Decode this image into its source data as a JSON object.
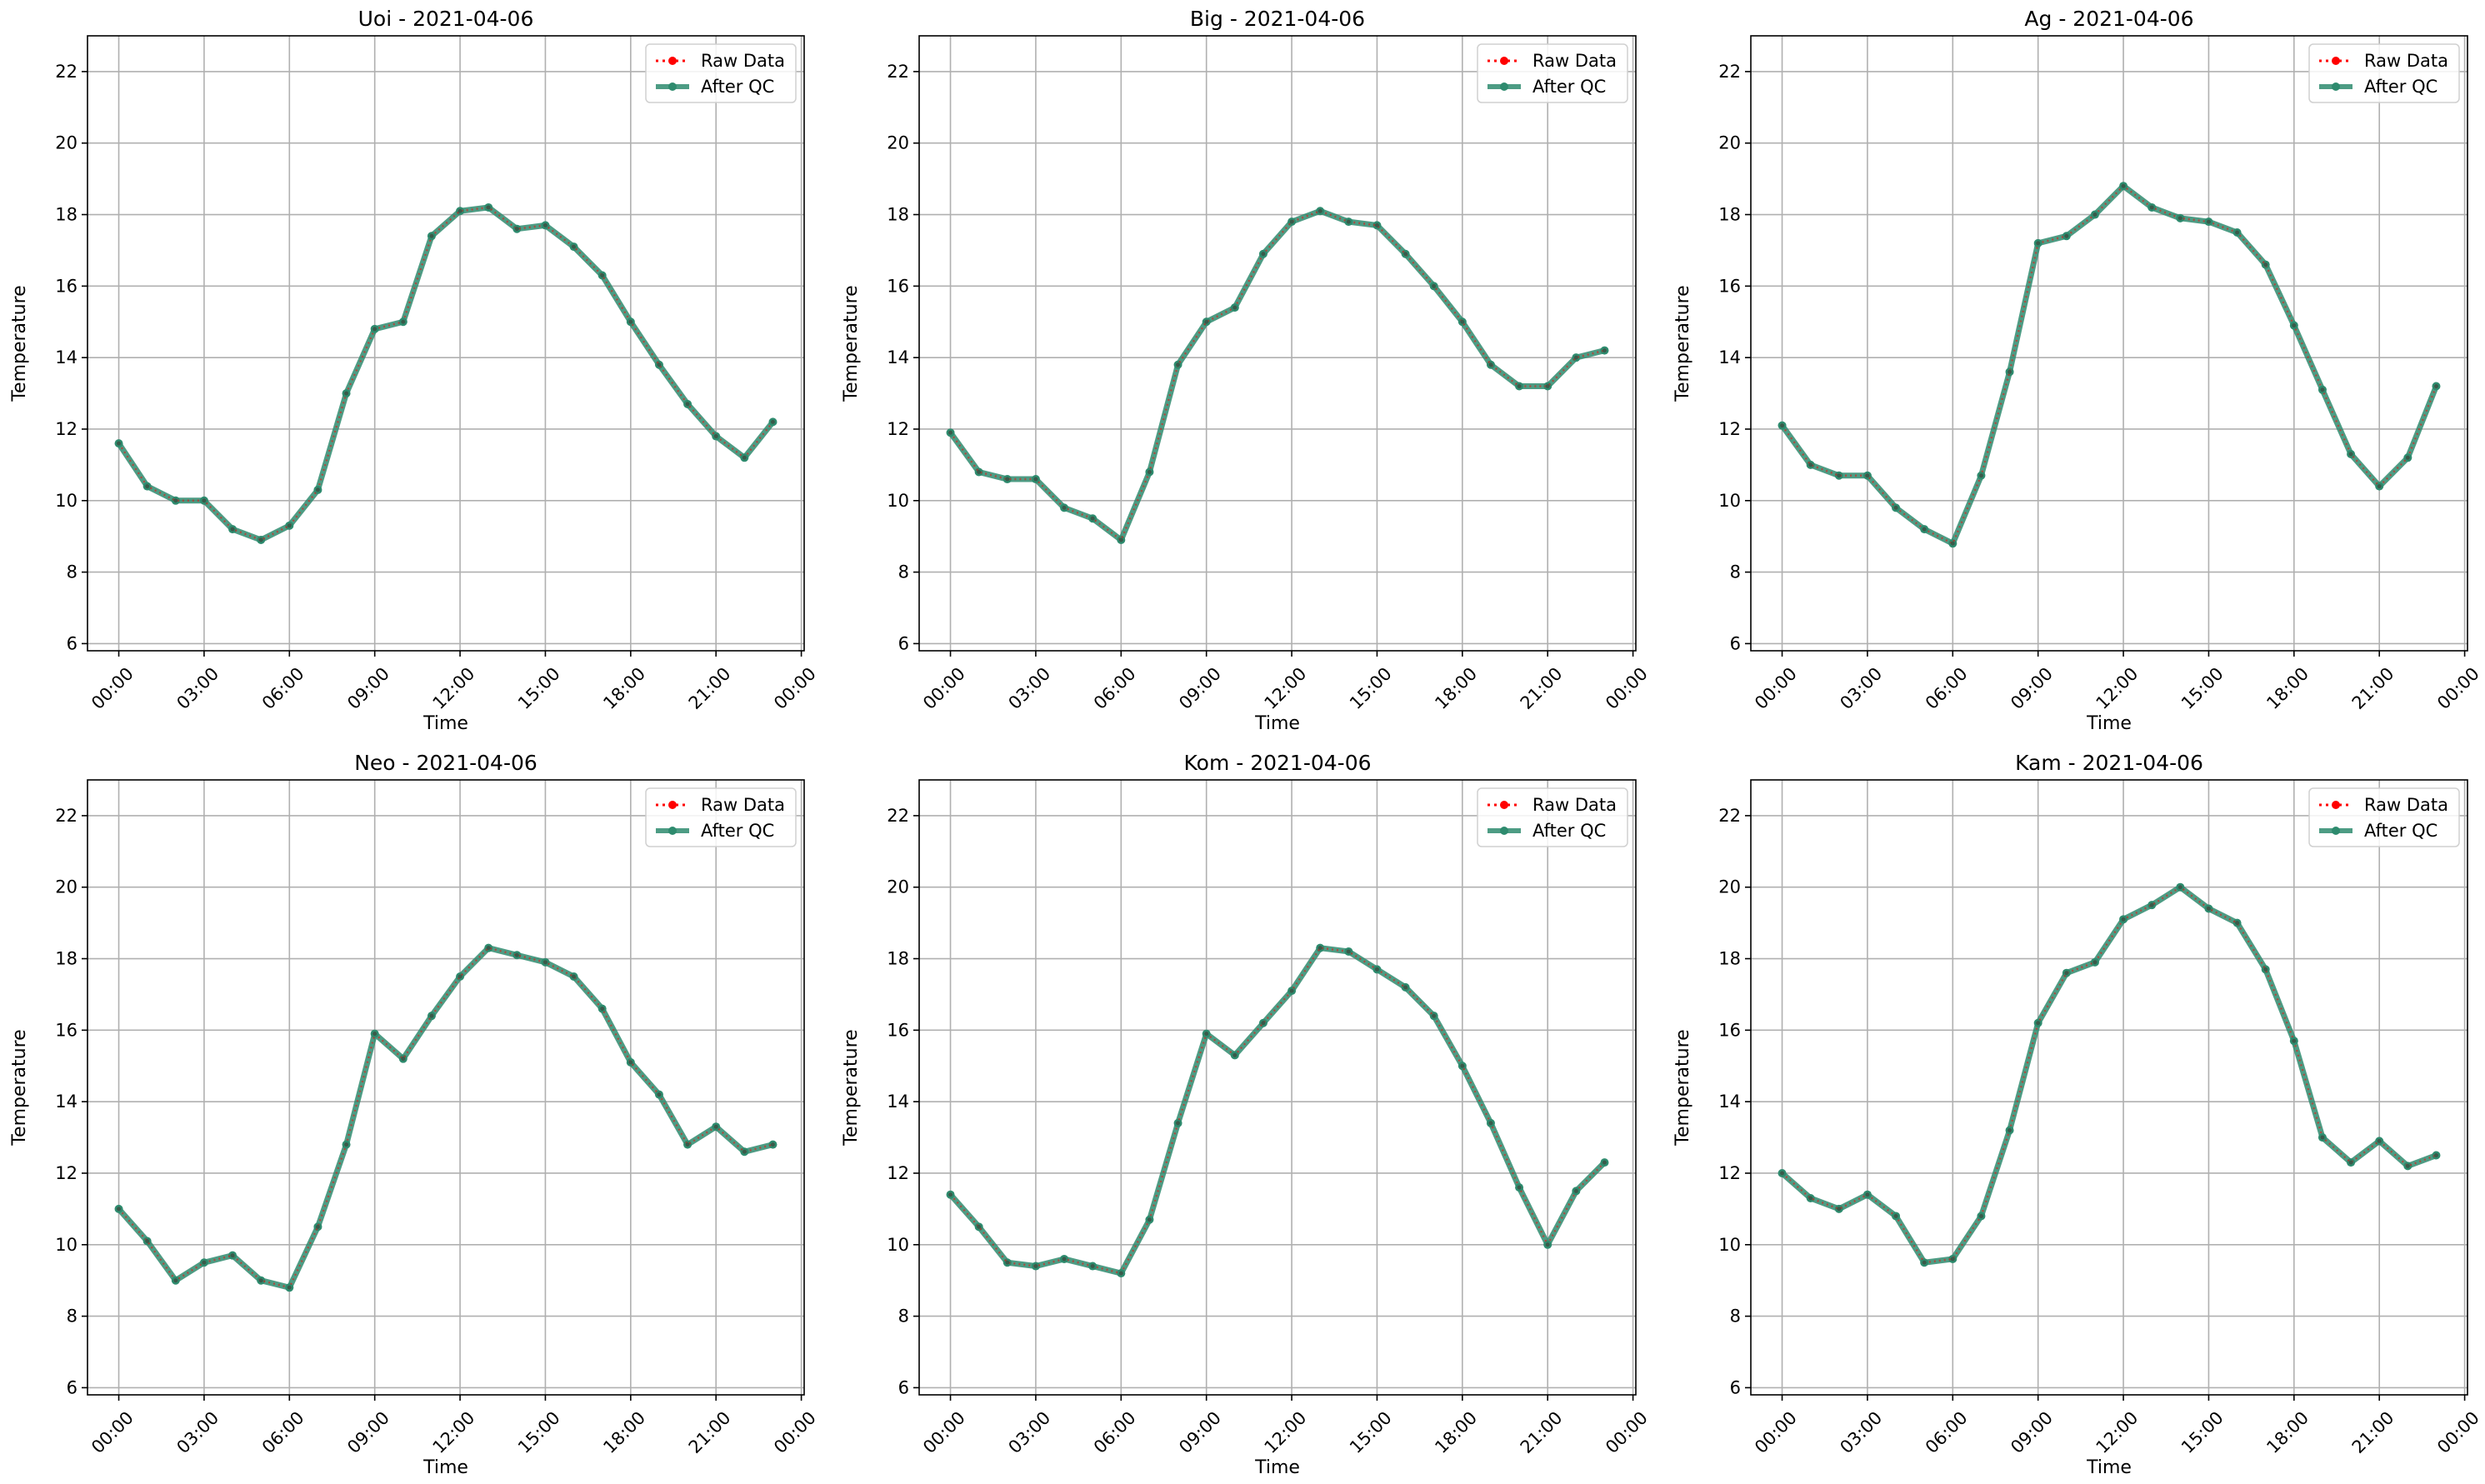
{
  "chart_data": [
    {
      "type": "line",
      "title": "Uoi - 2021-04-06",
      "xlabel": "Time",
      "ylabel": "Temperature",
      "ylim": [
        5.8,
        23
      ],
      "yticks": [
        6,
        8,
        10,
        12,
        14,
        16,
        18,
        20,
        22
      ],
      "xticks": [
        "00:00",
        "03:00",
        "06:00",
        "09:00",
        "12:00",
        "15:00",
        "18:00",
        "21:00",
        "00:00"
      ],
      "x": [
        "00:00",
        "01:00",
        "02:00",
        "03:00",
        "04:00",
        "05:00",
        "06:00",
        "07:00",
        "08:00",
        "09:00",
        "10:00",
        "11:00",
        "12:00",
        "13:00",
        "14:00",
        "15:00",
        "16:00",
        "17:00",
        "18:00",
        "19:00",
        "20:00",
        "21:00",
        "22:00",
        "23:00"
      ],
      "grid": true,
      "legend": "top-right",
      "series": [
        {
          "name": "Raw Data",
          "color": "#ff0000",
          "values": [
            11.6,
            10.4,
            10.0,
            10.0,
            9.2,
            8.9,
            9.3,
            10.3,
            13.0,
            14.8,
            15.0,
            17.4,
            18.1,
            18.2,
            17.6,
            17.7,
            17.1,
            16.3,
            15.0,
            13.8,
            12.7,
            11.8,
            11.2,
            12.2
          ]
        },
        {
          "name": "After QC",
          "color": "#2e8b6e",
          "values": [
            11.6,
            10.4,
            10.0,
            10.0,
            9.2,
            8.9,
            9.3,
            10.3,
            13.0,
            14.8,
            15.0,
            17.4,
            18.1,
            18.2,
            17.6,
            17.7,
            17.1,
            16.3,
            15.0,
            13.8,
            12.7,
            11.8,
            11.2,
            12.2
          ]
        }
      ]
    },
    {
      "type": "line",
      "title": "Big - 2021-04-06",
      "xlabel": "Time",
      "ylabel": "Temperature",
      "ylim": [
        5.8,
        23
      ],
      "yticks": [
        6,
        8,
        10,
        12,
        14,
        16,
        18,
        20,
        22
      ],
      "xticks": [
        "00:00",
        "03:00",
        "06:00",
        "09:00",
        "12:00",
        "15:00",
        "18:00",
        "21:00",
        "00:00"
      ],
      "x": [
        "00:00",
        "01:00",
        "02:00",
        "03:00",
        "04:00",
        "05:00",
        "06:00",
        "07:00",
        "08:00",
        "09:00",
        "10:00",
        "11:00",
        "12:00",
        "13:00",
        "14:00",
        "15:00",
        "16:00",
        "17:00",
        "18:00",
        "19:00",
        "20:00",
        "21:00",
        "22:00",
        "23:00"
      ],
      "grid": true,
      "legend": "top-right",
      "series": [
        {
          "name": "Raw Data",
          "color": "#ff0000",
          "values": [
            11.9,
            10.8,
            10.6,
            10.6,
            9.8,
            9.5,
            8.9,
            10.8,
            13.8,
            15.0,
            15.4,
            16.9,
            17.8,
            18.1,
            17.8,
            17.7,
            16.9,
            16.0,
            15.0,
            13.8,
            13.2,
            13.2,
            14.0,
            14.2
          ]
        },
        {
          "name": "After QC",
          "color": "#2e8b6e",
          "values": [
            11.9,
            10.8,
            10.6,
            10.6,
            9.8,
            9.5,
            8.9,
            10.8,
            13.8,
            15.0,
            15.4,
            16.9,
            17.8,
            18.1,
            17.8,
            17.7,
            16.9,
            16.0,
            15.0,
            13.8,
            13.2,
            13.2,
            14.0,
            14.2
          ]
        }
      ]
    },
    {
      "type": "line",
      "title": "Ag - 2021-04-06",
      "xlabel": "Time",
      "ylabel": "Temperature",
      "ylim": [
        5.8,
        23
      ],
      "yticks": [
        6,
        8,
        10,
        12,
        14,
        16,
        18,
        20,
        22
      ],
      "xticks": [
        "00:00",
        "03:00",
        "06:00",
        "09:00",
        "12:00",
        "15:00",
        "18:00",
        "21:00",
        "00:00"
      ],
      "x": [
        "00:00",
        "01:00",
        "02:00",
        "03:00",
        "04:00",
        "05:00",
        "06:00",
        "07:00",
        "08:00",
        "09:00",
        "10:00",
        "11:00",
        "12:00",
        "13:00",
        "14:00",
        "15:00",
        "16:00",
        "17:00",
        "18:00",
        "19:00",
        "20:00",
        "21:00",
        "22:00",
        "23:00"
      ],
      "grid": true,
      "legend": "top-right",
      "series": [
        {
          "name": "Raw Data",
          "color": "#ff0000",
          "values": [
            12.1,
            11.0,
            10.7,
            10.7,
            9.8,
            9.2,
            8.8,
            10.7,
            13.6,
            17.2,
            17.4,
            18.0,
            18.8,
            18.2,
            17.9,
            17.8,
            17.5,
            16.6,
            14.9,
            13.1,
            11.3,
            10.4,
            11.2,
            13.2
          ]
        },
        {
          "name": "After QC",
          "color": "#2e8b6e",
          "values": [
            12.1,
            11.0,
            10.7,
            10.7,
            9.8,
            9.2,
            8.8,
            10.7,
            13.6,
            17.2,
            17.4,
            18.0,
            18.8,
            18.2,
            17.9,
            17.8,
            17.5,
            16.6,
            14.9,
            13.1,
            11.3,
            10.4,
            11.2,
            13.2
          ]
        }
      ]
    },
    {
      "type": "line",
      "title": "Neo - 2021-04-06",
      "xlabel": "Time",
      "ylabel": "Temperature",
      "ylim": [
        5.8,
        23
      ],
      "yticks": [
        6,
        8,
        10,
        12,
        14,
        16,
        18,
        20,
        22
      ],
      "xticks": [
        "00:00",
        "03:00",
        "06:00",
        "09:00",
        "12:00",
        "15:00",
        "18:00",
        "21:00",
        "00:00"
      ],
      "x": [
        "00:00",
        "01:00",
        "02:00",
        "03:00",
        "04:00",
        "05:00",
        "06:00",
        "07:00",
        "08:00",
        "09:00",
        "10:00",
        "11:00",
        "12:00",
        "13:00",
        "14:00",
        "15:00",
        "16:00",
        "17:00",
        "18:00",
        "19:00",
        "20:00",
        "21:00",
        "22:00",
        "23:00"
      ],
      "grid": true,
      "legend": "top-right",
      "series": [
        {
          "name": "Raw Data",
          "color": "#ff0000",
          "values": [
            11.0,
            10.1,
            9.0,
            9.5,
            9.7,
            9.0,
            8.8,
            10.5,
            12.8,
            15.9,
            15.2,
            16.4,
            17.5,
            18.3,
            18.1,
            17.9,
            17.5,
            16.6,
            15.1,
            14.2,
            12.8,
            13.3,
            12.6,
            12.8
          ]
        },
        {
          "name": "After QC",
          "color": "#2e8b6e",
          "values": [
            11.0,
            10.1,
            9.0,
            9.5,
            9.7,
            9.0,
            8.8,
            10.5,
            12.8,
            15.9,
            15.2,
            16.4,
            17.5,
            18.3,
            18.1,
            17.9,
            17.5,
            16.6,
            15.1,
            14.2,
            12.8,
            13.3,
            12.6,
            12.8
          ]
        }
      ]
    },
    {
      "type": "line",
      "title": "Kom - 2021-04-06",
      "xlabel": "Time",
      "ylabel": "Temperature",
      "ylim": [
        5.8,
        23
      ],
      "yticks": [
        6,
        8,
        10,
        12,
        14,
        16,
        18,
        20,
        22
      ],
      "xticks": [
        "00:00",
        "03:00",
        "06:00",
        "09:00",
        "12:00",
        "15:00",
        "18:00",
        "21:00",
        "00:00"
      ],
      "x": [
        "00:00",
        "01:00",
        "02:00",
        "03:00",
        "04:00",
        "05:00",
        "06:00",
        "07:00",
        "08:00",
        "09:00",
        "10:00",
        "11:00",
        "12:00",
        "13:00",
        "14:00",
        "15:00",
        "16:00",
        "17:00",
        "18:00",
        "19:00",
        "20:00",
        "21:00",
        "22:00",
        "23:00"
      ],
      "grid": true,
      "legend": "top-right",
      "series": [
        {
          "name": "Raw Data",
          "color": "#ff0000",
          "values": [
            11.4,
            10.5,
            9.5,
            9.4,
            9.6,
            9.4,
            9.2,
            10.7,
            13.4,
            15.9,
            15.3,
            16.2,
            17.1,
            18.3,
            18.2,
            17.7,
            17.2,
            16.4,
            15.0,
            13.4,
            11.6,
            10.0,
            11.5,
            12.3
          ]
        },
        {
          "name": "After QC",
          "color": "#2e8b6e",
          "values": [
            11.4,
            10.5,
            9.5,
            9.4,
            9.6,
            9.4,
            9.2,
            10.7,
            13.4,
            15.9,
            15.3,
            16.2,
            17.1,
            18.3,
            18.2,
            17.7,
            17.2,
            16.4,
            15.0,
            13.4,
            11.6,
            10.0,
            11.5,
            12.3
          ]
        }
      ]
    },
    {
      "type": "line",
      "title": "Kam - 2021-04-06",
      "xlabel": "Time",
      "ylabel": "Temperature",
      "ylim": [
        5.8,
        23
      ],
      "yticks": [
        6,
        8,
        10,
        12,
        14,
        16,
        18,
        20,
        22
      ],
      "xticks": [
        "00:00",
        "03:00",
        "06:00",
        "09:00",
        "12:00",
        "15:00",
        "18:00",
        "21:00",
        "00:00"
      ],
      "x": [
        "00:00",
        "01:00",
        "02:00",
        "03:00",
        "04:00",
        "05:00",
        "06:00",
        "07:00",
        "08:00",
        "09:00",
        "10:00",
        "11:00",
        "12:00",
        "13:00",
        "14:00",
        "15:00",
        "16:00",
        "17:00",
        "18:00",
        "19:00",
        "20:00",
        "21:00",
        "22:00",
        "23:00"
      ],
      "grid": true,
      "legend": "top-right",
      "series": [
        {
          "name": "Raw Data",
          "color": "#ff0000",
          "values": [
            12.0,
            11.3,
            11.0,
            11.4,
            10.8,
            9.5,
            9.6,
            10.8,
            13.2,
            16.2,
            17.6,
            17.9,
            19.1,
            19.5,
            20.0,
            19.4,
            19.0,
            17.7,
            15.7,
            13.0,
            12.3,
            12.9,
            12.2,
            12.5
          ]
        },
        {
          "name": "After QC",
          "color": "#2e8b6e",
          "values": [
            12.0,
            11.3,
            11.0,
            11.4,
            10.8,
            9.5,
            9.6,
            10.8,
            13.2,
            16.2,
            17.6,
            17.9,
            19.1,
            19.5,
            20.0,
            19.4,
            19.0,
            17.7,
            15.7,
            13.0,
            12.3,
            12.9,
            12.2,
            12.5
          ]
        }
      ]
    }
  ]
}
